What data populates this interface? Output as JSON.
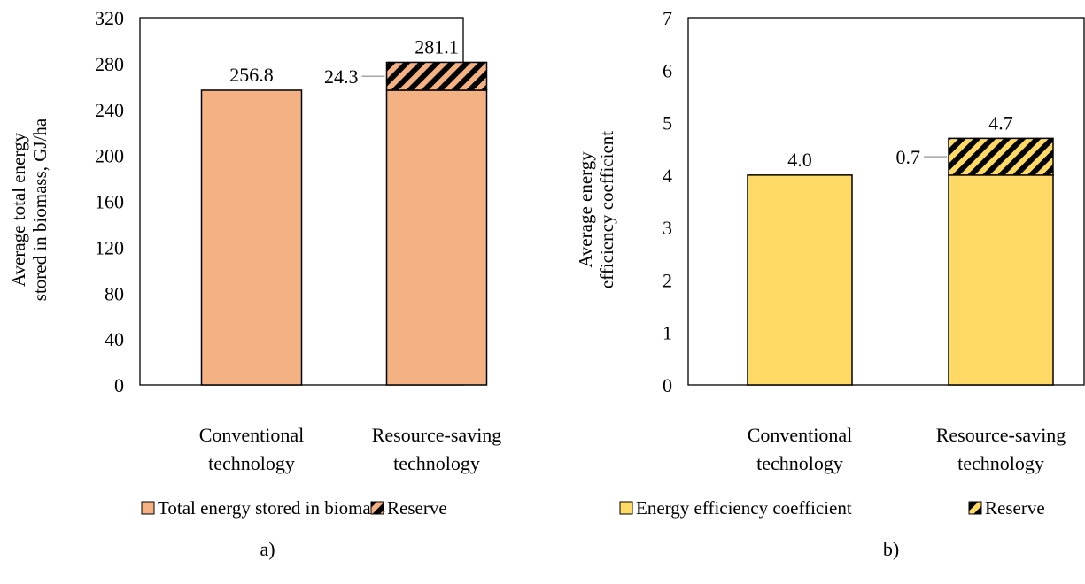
{
  "chart_data": [
    {
      "type": "bar",
      "stacked": true,
      "panel_label": "a)",
      "ylabel": [
        "Average total energy",
        "stored in biomass, GJ/ha"
      ],
      "categories": [
        [
          "Conventional",
          "technology"
        ],
        [
          "Resource-saving",
          "technology"
        ]
      ],
      "ylim": [
        0,
        320
      ],
      "yticks": [
        0,
        40,
        80,
        120,
        160,
        200,
        240,
        280,
        320
      ],
      "grid": false,
      "series": [
        {
          "name": "Total energy stored in biomass",
          "values": [
            256.8,
            256.8
          ],
          "color": "#F4B183",
          "pattern": "solid"
        },
        {
          "name": "Reserve",
          "values": [
            0,
            24.3
          ],
          "color": "#F4B183",
          "pattern": "hatch"
        }
      ],
      "total_labels": [
        "256.8",
        "281.1"
      ],
      "reserve_label": "24.3",
      "legend": "bottom"
    },
    {
      "type": "bar",
      "stacked": true,
      "panel_label": "b)",
      "ylabel": [
        "Average energy",
        "efficiency coefficient"
      ],
      "categories": [
        [
          "Conventional",
          "technology"
        ],
        [
          "Resource-saving",
          "technology"
        ]
      ],
      "ylim": [
        0,
        7
      ],
      "yticks": [
        0,
        1,
        2,
        3,
        4,
        5,
        6,
        7
      ],
      "grid": false,
      "series": [
        {
          "name": "Energy efficiency coefficient",
          "values": [
            4.0,
            4.0
          ],
          "color": "#FFD966",
          "pattern": "solid"
        },
        {
          "name": "Reserve",
          "values": [
            0,
            0.7
          ],
          "color": "#FFD966",
          "pattern": "hatch"
        }
      ],
      "total_labels": [
        "4.0",
        "4.7"
      ],
      "reserve_label": "0.7",
      "legend": "bottom"
    }
  ]
}
